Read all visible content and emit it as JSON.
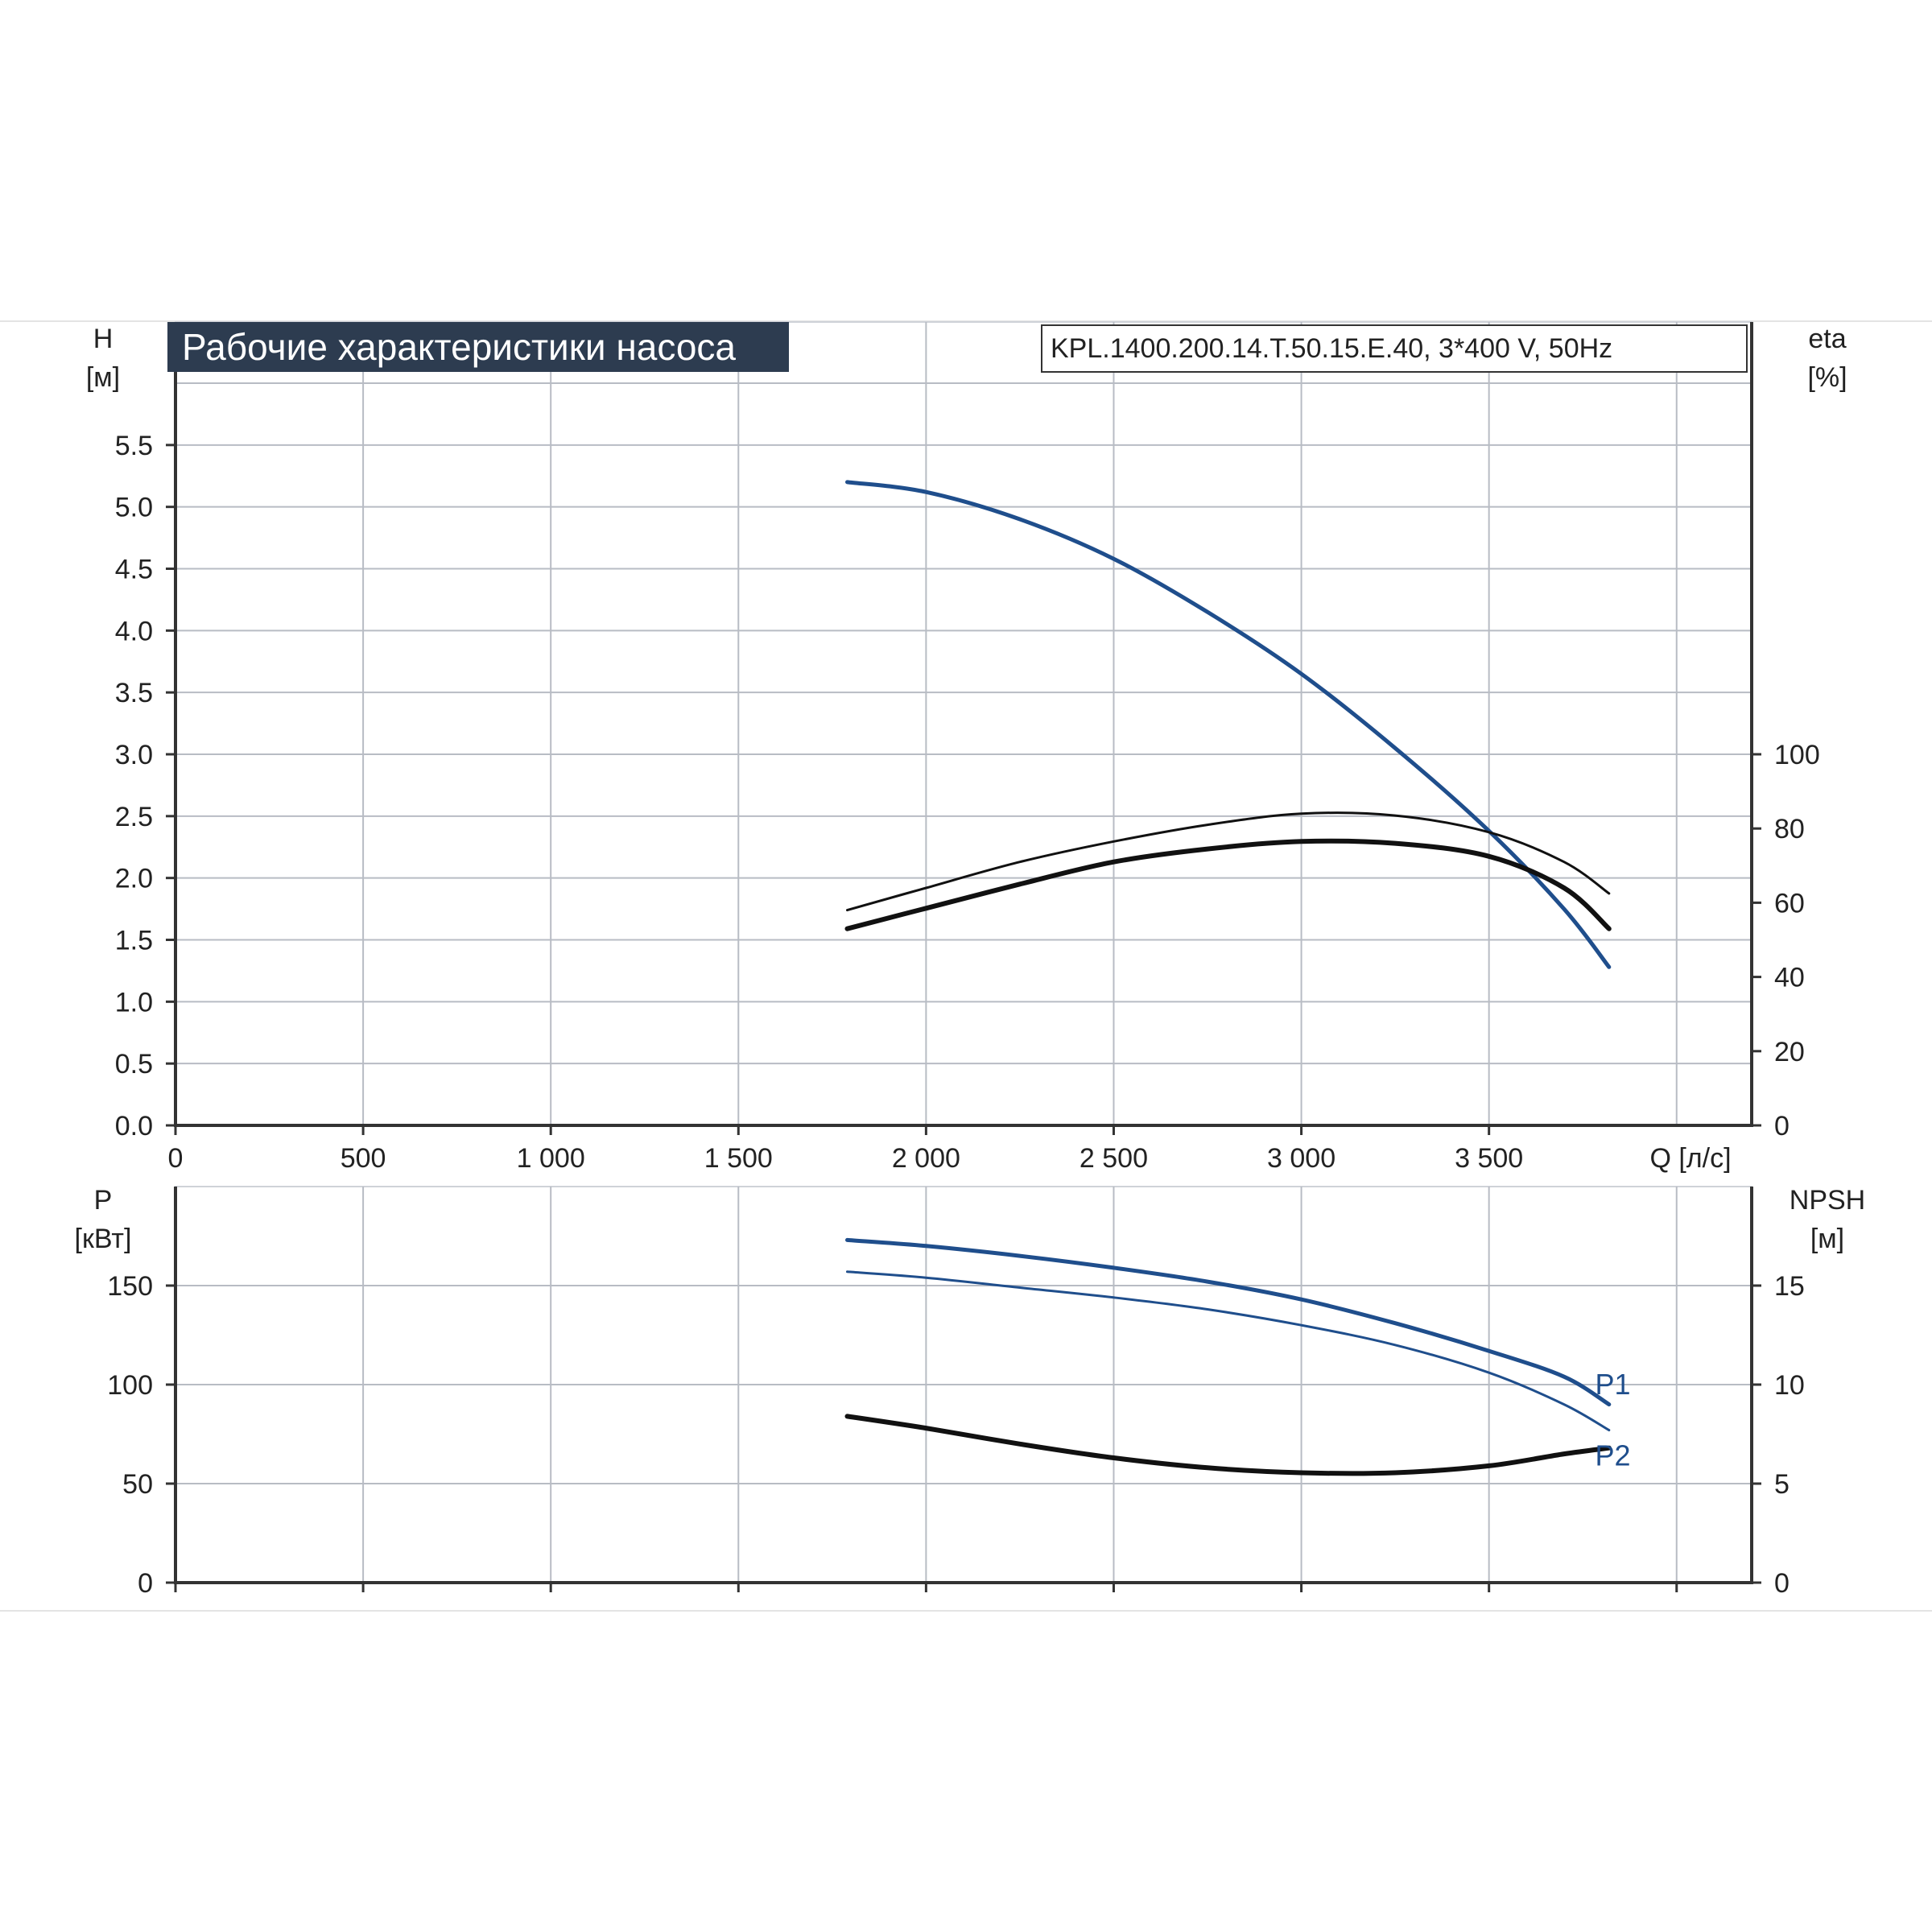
{
  "title": "Рабочие характеристики насоса",
  "model_label": "KPL.1400.200.14.T.50.15.E.40, 3*400 V, 50Hz",
  "colors": {
    "head": "#1f4e8c",
    "power": "#1f4e8c",
    "efficiency": "#111111",
    "npsh": "#111111",
    "grid": "#b8bcc4",
    "banner": "#2d3c50"
  },
  "chart_data": [
    {
      "type": "line",
      "panel": "top",
      "xlabel": "Q [л/с]",
      "xlim": [
        0,
        4200
      ],
      "x_ticks": [
        0,
        500,
        1000,
        1500,
        2000,
        2500,
        3000,
        3500
      ],
      "x_tick_labels": [
        "0",
        "500",
        "1 000",
        "1 500",
        "2 000",
        "2 500",
        "3 000",
        "3 500"
      ],
      "y_left": {
        "label_line1": "H",
        "label_line2": "[м]",
        "ylim": [
          0,
          6.0
        ],
        "ticks": [
          0,
          0.5,
          1.0,
          1.5,
          2.0,
          2.5,
          3.0,
          3.5,
          4.0,
          4.5,
          5.0,
          5.5
        ],
        "tick_labels": [
          "0.0",
          "0.5",
          "1.0",
          "1.5",
          "2.0",
          "2.5",
          "3.0",
          "3.5",
          "4.0",
          "4.5",
          "5.0",
          "5.5"
        ]
      },
      "y_right": {
        "label_line1": "eta",
        "label_line2": "[%]",
        "ylim": [
          0,
          200
        ],
        "ticks": [
          0,
          20,
          40,
          60,
          80,
          100
        ],
        "tick_labels": [
          "0",
          "20",
          "40",
          "60",
          "80",
          "100"
        ]
      },
      "grid": true,
      "series": [
        {
          "kind": "head",
          "axis": "left",
          "color": "#1f4e8c",
          "width": 5,
          "x": [
            1790,
            2000,
            2250,
            2500,
            2750,
            3000,
            3250,
            3500,
            3700,
            3820
          ],
          "y": [
            5.2,
            5.12,
            4.9,
            4.58,
            4.15,
            3.65,
            3.05,
            2.38,
            1.75,
            1.28
          ]
        },
        {
          "kind": "efficiency",
          "axis": "right",
          "color": "#111111",
          "width": 3,
          "x": [
            1790,
            2000,
            2250,
            2500,
            2750,
            3000,
            3250,
            3500,
            3700,
            3820
          ],
          "y": [
            58,
            64,
            71,
            76.5,
            81,
            84,
            83.5,
            79,
            71,
            62.5
          ]
        },
        {
          "kind": "efficiency",
          "axis": "right",
          "color": "#111111",
          "width": 6,
          "x": [
            1790,
            2000,
            2250,
            2500,
            2750,
            3000,
            3250,
            3500,
            3700,
            3820
          ],
          "y": [
            53,
            58.5,
            65,
            71,
            74.5,
            76.5,
            76,
            72.5,
            64,
            53
          ]
        }
      ]
    },
    {
      "type": "line",
      "panel": "bottom",
      "xlim": [
        0,
        4200
      ],
      "x_ticks": [
        0,
        500,
        1000,
        1500,
        2000,
        2500,
        3000,
        3500,
        4000
      ],
      "y_left": {
        "label_line1": "P",
        "label_line2": "[кВт]",
        "ylim": [
          0,
          200
        ],
        "ticks": [
          0,
          50,
          100,
          150
        ],
        "tick_labels": [
          "0",
          "50",
          "100",
          "150"
        ]
      },
      "y_right": {
        "label_line1": "NPSH",
        "label_line2": "[м]",
        "ylim": [
          0,
          20
        ],
        "ticks": [
          0,
          5,
          10,
          15
        ],
        "tick_labels": [
          "0",
          "5",
          "10",
          "15"
        ]
      },
      "grid": true,
      "series": [
        {
          "name": "P1",
          "kind": "power",
          "axis": "left",
          "color": "#1f4e8c",
          "width": 5,
          "x": [
            1790,
            2000,
            2250,
            2500,
            2750,
            3000,
            3250,
            3500,
            3700,
            3820
          ],
          "y": [
            173,
            170,
            165,
            159,
            152,
            143,
            131,
            117,
            104,
            90
          ]
        },
        {
          "name": "P2",
          "kind": "power",
          "axis": "left",
          "color": "#1f4e8c",
          "width": 3,
          "x": [
            1790,
            2000,
            2250,
            2500,
            2750,
            3000,
            3250,
            3500,
            3700,
            3820
          ],
          "y": [
            157,
            154,
            149,
            144,
            138,
            130,
            120,
            106,
            90,
            77
          ]
        },
        {
          "kind": "npsh",
          "axis": "right",
          "color": "#111111",
          "width": 6,
          "x": [
            1790,
            2000,
            2250,
            2500,
            2750,
            3000,
            3250,
            3500,
            3700,
            3820
          ],
          "y": [
            8.4,
            7.8,
            7.0,
            6.3,
            5.8,
            5.55,
            5.55,
            5.9,
            6.5,
            6.8
          ]
        }
      ],
      "series_labels": [
        {
          "text": "P1",
          "x": 3830,
          "y": 100
        },
        {
          "text": "P2",
          "x": 3830,
          "y": 64
        }
      ]
    }
  ]
}
